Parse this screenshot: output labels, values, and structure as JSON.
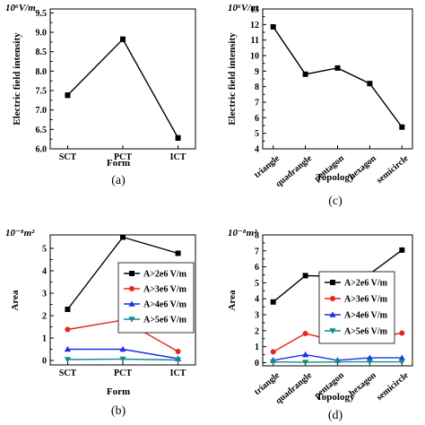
{
  "chart_data": [
    {
      "id": "a",
      "type": "line",
      "panel_label": "(a)",
      "unit_label": "10⁶V/m",
      "ylabel": "Electric field intensity",
      "xlabel": "Form",
      "categories": [
        "SCT",
        "PCT",
        "ICT"
      ],
      "ylim": [
        6.0,
        9.6
      ],
      "yticks": [
        "6.0",
        "6.5",
        "7.0",
        "7.5",
        "8.0",
        "8.5",
        "9.0",
        "9.5"
      ],
      "grid": false,
      "series": [
        {
          "color": "#000000",
          "marker": "square",
          "values": [
            7.38,
            8.82,
            6.28
          ],
          "errors": [
            0.06,
            0.06,
            0.06
          ]
        }
      ]
    },
    {
      "id": "c",
      "type": "line",
      "panel_label": "(c)",
      "unit_label": "10⁶V/m",
      "ylabel": "Electric field intensity",
      "xlabel": "Topology",
      "categories": [
        "triangle",
        "quadrangle",
        "pentagon",
        "hexagon",
        "semicircle"
      ],
      "ylim": [
        4,
        13
      ],
      "yticks": [
        "4",
        "5",
        "6",
        "7",
        "8",
        "9",
        "10",
        "11",
        "12",
        "13"
      ],
      "grid": false,
      "series": [
        {
          "color": "#000000",
          "marker": "square",
          "values": [
            11.85,
            8.8,
            9.2,
            8.2,
            5.4
          ],
          "errors": [
            0.12,
            0.05,
            0.1,
            0.05,
            0.0
          ]
        }
      ]
    },
    {
      "id": "b",
      "type": "line",
      "panel_label": "(b)",
      "unit_label": "10⁻⁸m²",
      "ylabel": "Area",
      "xlabel": "Form",
      "categories": [
        "SCT",
        "PCT",
        "ICT"
      ],
      "ylim": [
        -0.2,
        5.6
      ],
      "yticks": [
        "0",
        "1",
        "2",
        "3",
        "4",
        "5"
      ],
      "grid": false,
      "legend_position": "right",
      "series": [
        {
          "name": "A>2e6 V/m",
          "color": "#000000",
          "marker": "square",
          "values": [
            2.28,
            5.5,
            4.78
          ]
        },
        {
          "name": "A>3e6 V/m",
          "color": "#e8251c",
          "marker": "circle",
          "values": [
            1.38,
            1.8,
            0.4
          ]
        },
        {
          "name": "A>4e6 V/m",
          "color": "#1f2ee8",
          "marker": "triangle-up",
          "values": [
            0.5,
            0.5,
            0.08
          ]
        },
        {
          "name": "A>5e6 V/m",
          "color": "#148a8a",
          "marker": "triangle-down",
          "values": [
            0.04,
            0.06,
            0.02
          ]
        }
      ]
    },
    {
      "id": "d",
      "type": "line",
      "panel_label": "(d)",
      "unit_label": "10⁻⁸m²",
      "ylabel": "Area",
      "xlabel": "Topology",
      "categories": [
        "triangle",
        "quadrangle",
        "pentagon",
        "hexagon",
        "semicircle"
      ],
      "ylim": [
        -0.2,
        8.0
      ],
      "yticks": [
        "0",
        "1",
        "2",
        "3",
        "4",
        "5",
        "6",
        "7",
        "8"
      ],
      "grid": false,
      "legend_position": "center",
      "series": [
        {
          "name": "A>2e6 V/m",
          "color": "#000000",
          "marker": "square",
          "values": [
            3.8,
            5.45,
            5.4,
            5.55,
            7.05
          ]
        },
        {
          "name": "A>3e6 V/m",
          "color": "#e8251c",
          "marker": "circle",
          "values": [
            0.68,
            1.82,
            1.35,
            1.55,
            1.85
          ]
        },
        {
          "name": "A>4e6 V/m",
          "color": "#1f2ee8",
          "marker": "triangle-up",
          "values": [
            0.15,
            0.5,
            0.15,
            0.3,
            0.3
          ]
        },
        {
          "name": "A>5e6 V/m",
          "color": "#148a8a",
          "marker": "triangle-down",
          "values": [
            0.05,
            0.02,
            0.05,
            0.05,
            0.05
          ]
        }
      ]
    }
  ]
}
